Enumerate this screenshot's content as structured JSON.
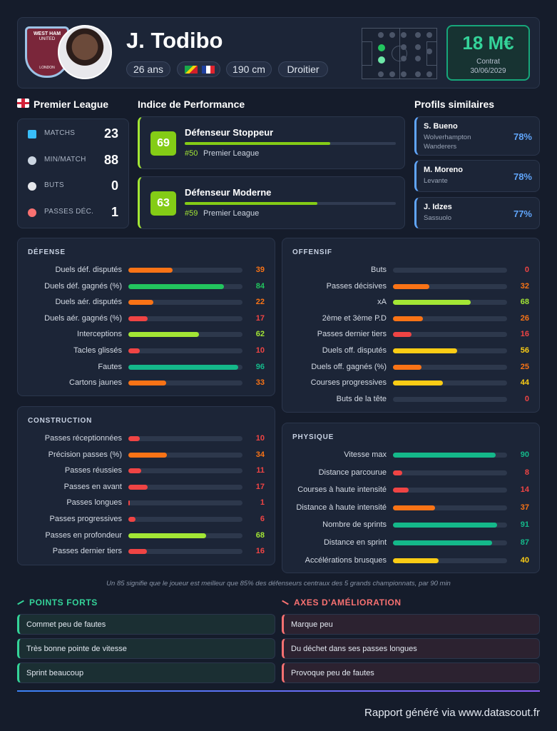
{
  "club": {
    "line1": "WEST HAM",
    "line2": "UNITED",
    "city": "LONDON"
  },
  "header": {
    "name": "J. Todibo",
    "age": "26 ans",
    "height": "190 cm",
    "foot": "Droitier",
    "value": "18 M€",
    "contract_label": "Contrat",
    "contract_date": "30/06/2029"
  },
  "league": {
    "name": "Premier League",
    "stats": [
      {
        "label": "MATCHS",
        "value": 23
      },
      {
        "label": "MIN/MATCH",
        "value": 88
      },
      {
        "label": "BUTS",
        "value": 0
      },
      {
        "label": "PASSES DÉC.",
        "value": 1
      }
    ]
  },
  "performance": {
    "title": "Indice de Performance",
    "items": [
      {
        "score": 69,
        "role": "Défenseur Stoppeur",
        "rank": "#50",
        "league": "Premier League"
      },
      {
        "score": 63,
        "role": "Défenseur Moderne",
        "rank": "#59",
        "league": "Premier League"
      }
    ]
  },
  "similar": {
    "title": "Profils similaires",
    "items": [
      {
        "name": "S. Bueno",
        "club": "Wolverhampton Wanderers",
        "pct": "78%"
      },
      {
        "name": "M. Moreno",
        "club": "Levante",
        "pct": "78%"
      },
      {
        "name": "J. Idzes",
        "club": "Sassuolo",
        "pct": "77%"
      }
    ]
  },
  "sections": [
    {
      "title": "DÉFENSE",
      "metrics": [
        {
          "label": "Duels déf. disputés",
          "value": 39
        },
        {
          "label": "Duels déf. gagnés (%)",
          "value": 84
        },
        {
          "label": "Duels aér. disputés",
          "value": 22
        },
        {
          "label": "Duels aér. gagnés (%)",
          "value": 17
        },
        {
          "label": "Interceptions",
          "value": 62
        },
        {
          "label": "Tacles glissés",
          "value": 10
        },
        {
          "label": "Fautes",
          "value": 96
        },
        {
          "label": "Cartons jaunes",
          "value": 33
        }
      ]
    },
    {
      "title": "OFFENSIF",
      "metrics": [
        {
          "label": "Buts",
          "value": 0
        },
        {
          "label": "Passes décisives",
          "value": 32
        },
        {
          "label": "xA",
          "value": 68
        },
        {
          "label": "2ème et 3ème P.D",
          "value": 26
        },
        {
          "label": "Passes dernier tiers",
          "value": 16
        },
        {
          "label": "Duels off. disputés",
          "value": 56
        },
        {
          "label": "Duels off. gagnés (%)",
          "value": 25
        },
        {
          "label": "Courses progressives",
          "value": 44
        },
        {
          "label": "Buts de la tête",
          "value": 0
        }
      ]
    },
    {
      "title": "CONSTRUCTION",
      "metrics": [
        {
          "label": "Passes réceptionnées",
          "value": 10
        },
        {
          "label": "Précision passes (%)",
          "value": 34
        },
        {
          "label": "Passes réussies",
          "value": 11
        },
        {
          "label": "Passes en avant",
          "value": 17
        },
        {
          "label": "Passes longues",
          "value": 1
        },
        {
          "label": "Passes progressives",
          "value": 6
        },
        {
          "label": "Passes en profondeur",
          "value": 68
        },
        {
          "label": "Passes dernier tiers",
          "value": 16
        }
      ]
    },
    {
      "title": "PHYSIQUE",
      "metrics": [
        {
          "label": "Vitesse max",
          "value": 90
        },
        {
          "label": "Distance parcourue",
          "value": 8
        },
        {
          "label": "Courses à haute intensité",
          "value": 14
        },
        {
          "label": "Distance à haute intensité",
          "value": 37
        },
        {
          "label": "Nombre de sprints",
          "value": 91
        },
        {
          "label": "Distance en sprint",
          "value": 87
        },
        {
          "label": "Accélérations brusques",
          "value": 40
        }
      ]
    }
  ],
  "note": "Un 85 signifie que le joueur est meilleur que 85% des défenseurs centraux des 5 grands championnats, par 90 min",
  "strengths": {
    "title": "POINTS FORTS",
    "items": [
      "Commet peu de fautes",
      "Très bonne pointe de vitesse",
      "Sprint beaucoup"
    ]
  },
  "weaknesses": {
    "title": "AXES D'AMÉLIORATION",
    "items": [
      "Marque peu",
      "Du déchet dans ses passes longues",
      "Provoque peu de fautes"
    ]
  },
  "footer": "Rapport généré via www.datascout.fr"
}
